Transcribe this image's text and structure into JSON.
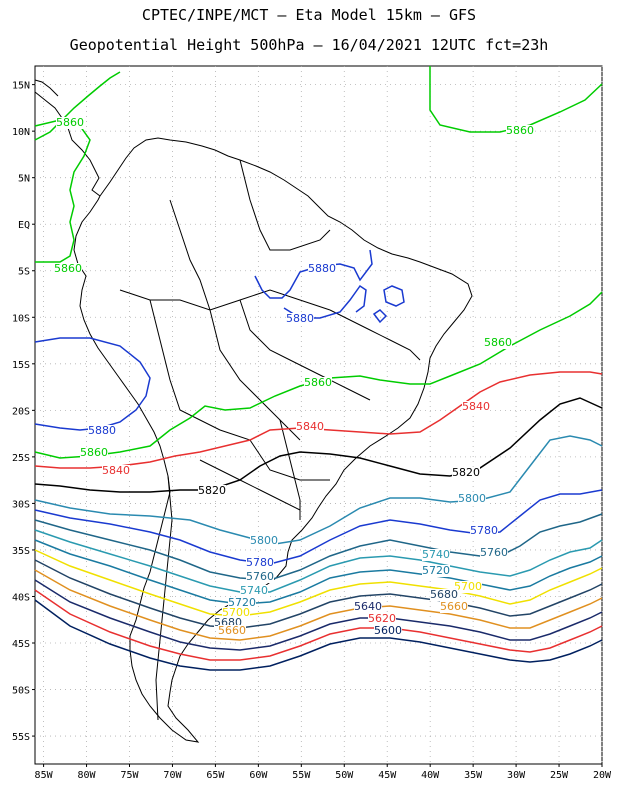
{
  "header": {
    "line1": "CPTEC/INPE/MCT –  Eta Model 15km – GFS",
    "line2": "Geopotential Height 500hPa – 16/04/2021 12UTC fct=23h"
  },
  "axes": {
    "lat_labels": [
      "15N",
      "10N",
      "5N",
      "EQ",
      "5S",
      "10S",
      "15S",
      "20S",
      "25S",
      "30S",
      "35S",
      "40S",
      "45S",
      "50S",
      "55S"
    ],
    "lon_labels": [
      "85W",
      "80W",
      "75W",
      "70W",
      "65W",
      "60W",
      "55W",
      "50W",
      "45W",
      "40W",
      "35W",
      "30W",
      "25W",
      "20W"
    ],
    "lat_range": [
      17,
      -58
    ],
    "lon_range": [
      -86,
      -20
    ]
  },
  "map_data": {
    "type": "contour",
    "variable": "geopotential height 500hPa",
    "levels": [
      {
        "value": 5600,
        "label": "5600",
        "color": "#00205f"
      },
      {
        "value": 5620,
        "label": "5620",
        "color": "#e83030"
      },
      {
        "value": 5640,
        "label": "5640",
        "color": "#1a2a6a"
      },
      {
        "value": 5660,
        "label": "5660",
        "color": "#e09020"
      },
      {
        "value": 5680,
        "label": "5680",
        "color": "#224466"
      },
      {
        "value": 5700,
        "label": "5700",
        "color": "#f0e000"
      },
      {
        "value": 5720,
        "label": "5720",
        "color": "#1a7aa0"
      },
      {
        "value": 5740,
        "label": "5740",
        "color": "#2a9ab0"
      },
      {
        "value": 5760,
        "label": "5760",
        "color": "#1f6688"
      },
      {
        "value": 5780,
        "label": "5780",
        "color": "#1a3ad0"
      },
      {
        "value": 5800,
        "label": "5800",
        "color": "#2a8ab0"
      },
      {
        "value": 5820,
        "label": "5820",
        "color": "#000000"
      },
      {
        "value": 5840,
        "label": "5840",
        "color": "#e83030"
      },
      {
        "value": 5860,
        "label": "5860",
        "color": "#00cc00"
      },
      {
        "value": 5880,
        "label": "5880",
        "color": "#1a3ad0"
      }
    ],
    "contour_labels": [
      {
        "text": "5860",
        "color": "#00cc00"
      },
      {
        "text": "5860",
        "color": "#00cc00"
      },
      {
        "text": "5860",
        "color": "#00cc00"
      },
      {
        "text": "5860",
        "color": "#00cc00"
      },
      {
        "text": "5860",
        "color": "#00cc00"
      },
      {
        "text": "5860",
        "color": "#00cc00"
      },
      {
        "text": "5880",
        "color": "#1a3ad0"
      },
      {
        "text": "5880",
        "color": "#1a3ad0"
      },
      {
        "text": "5880",
        "color": "#1a3ad0"
      },
      {
        "text": "5840",
        "color": "#e83030"
      },
      {
        "text": "5840",
        "color": "#e83030"
      },
      {
        "text": "5840",
        "color": "#e83030"
      },
      {
        "text": "5820",
        "color": "#000000"
      },
      {
        "text": "5820",
        "color": "#000000"
      },
      {
        "text": "5800",
        "color": "#2a8ab0"
      },
      {
        "text": "5800",
        "color": "#2a8ab0"
      },
      {
        "text": "5780",
        "color": "#1a3ad0"
      },
      {
        "text": "5780",
        "color": "#1a3ad0"
      },
      {
        "text": "5760",
        "color": "#1f6688"
      },
      {
        "text": "5760",
        "color": "#1f6688"
      },
      {
        "text": "5740",
        "color": "#2a9ab0"
      },
      {
        "text": "5740",
        "color": "#2a9ab0"
      },
      {
        "text": "5720",
        "color": "#1a7aa0"
      },
      {
        "text": "5720",
        "color": "#1a7aa0"
      },
      {
        "text": "5700",
        "color": "#f0e000"
      },
      {
        "text": "5700",
        "color": "#f0e000"
      },
      {
        "text": "5680",
        "color": "#224466"
      },
      {
        "text": "5680",
        "color": "#224466"
      },
      {
        "text": "5660",
        "color": "#e09020"
      },
      {
        "text": "5660",
        "color": "#e09020"
      },
      {
        "text": "5640",
        "color": "#1a2a6a"
      },
      {
        "text": "5620",
        "color": "#e83030"
      },
      {
        "text": "5600",
        "color": "#00205f"
      }
    ],
    "grid": true,
    "grid_style": "dotted"
  }
}
